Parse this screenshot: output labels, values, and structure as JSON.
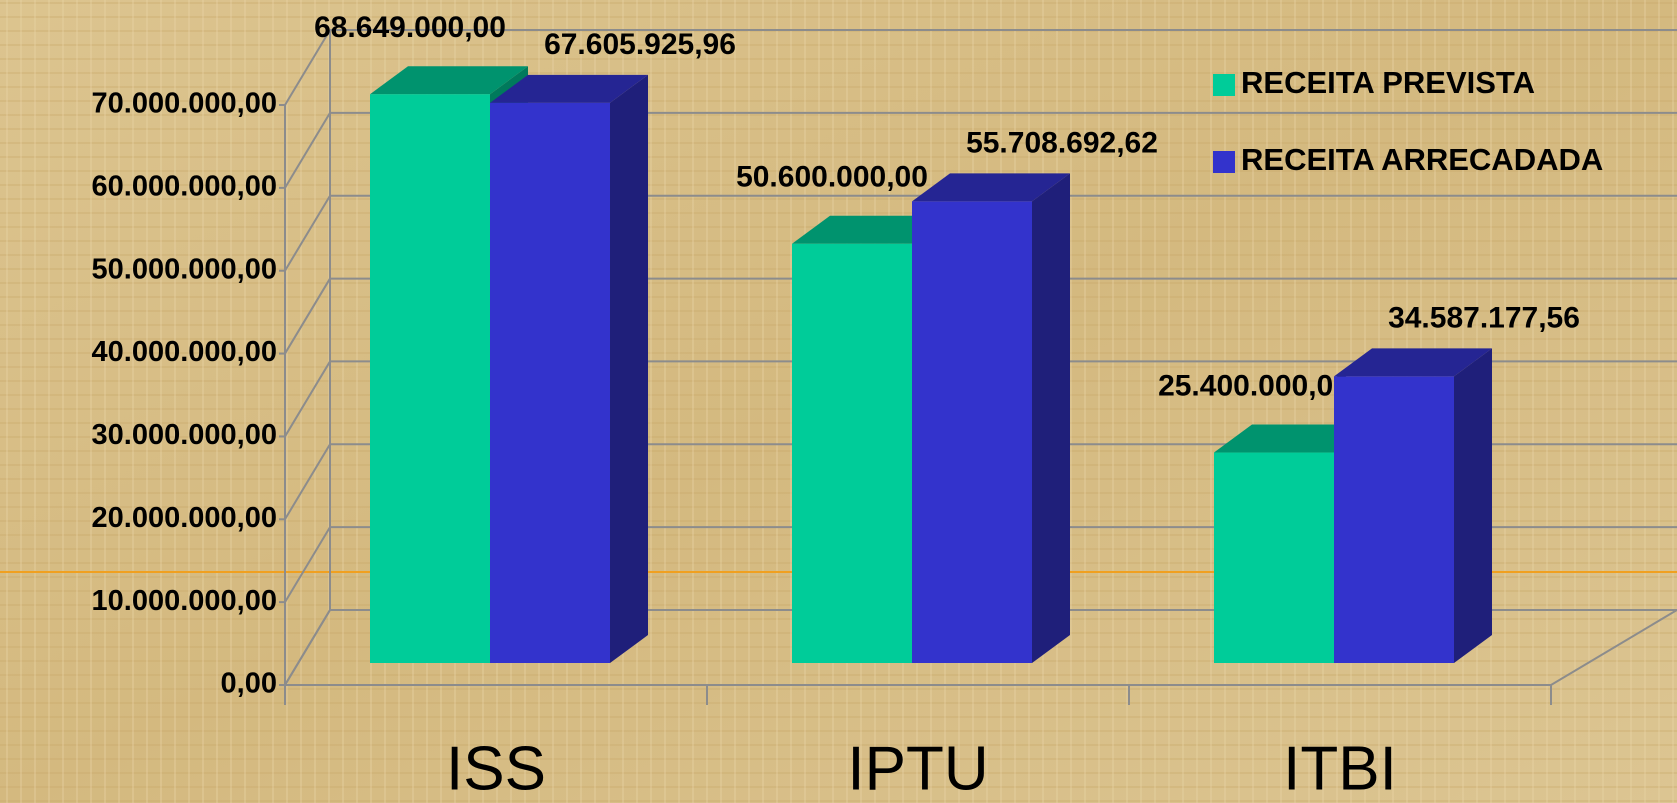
{
  "chart_data": {
    "type": "bar3d",
    "categories": [
      "ISS",
      "IPTU",
      "ITBI"
    ],
    "series": [
      {
        "name": "RECEITA PREVISTA",
        "color": "#00cc99",
        "values": [
          68649000,
          50600000,
          25400000
        ],
        "value_labels": [
          "68.649.000,00",
          "50.600.000,00",
          "25.400.000,00"
        ]
      },
      {
        "name": "RECEITA ARRECADADA",
        "color": "#3333cc",
        "values": [
          67605925.96,
          55708692.62,
          34587177.56
        ],
        "value_labels": [
          "67.605.925,96",
          "55.708.692,62",
          "34.587.177,56"
        ]
      }
    ],
    "ylim": [
      0,
      70000000
    ],
    "yticks": [
      {
        "value": 0,
        "label": "0,00"
      },
      {
        "value": 10000000,
        "label": "10.000.000,00"
      },
      {
        "value": 20000000,
        "label": "20.000.000,00"
      },
      {
        "value": 30000000,
        "label": "30.000.000,00"
      },
      {
        "value": 40000000,
        "label": "40.000.000,00"
      },
      {
        "value": 50000000,
        "label": "50.000.000,00"
      },
      {
        "value": 60000000,
        "label": "60.000.000,00"
      },
      {
        "value": 70000000,
        "label": "70.000.000,00"
      }
    ],
    "grid": true,
    "legend": "top-right"
  }
}
